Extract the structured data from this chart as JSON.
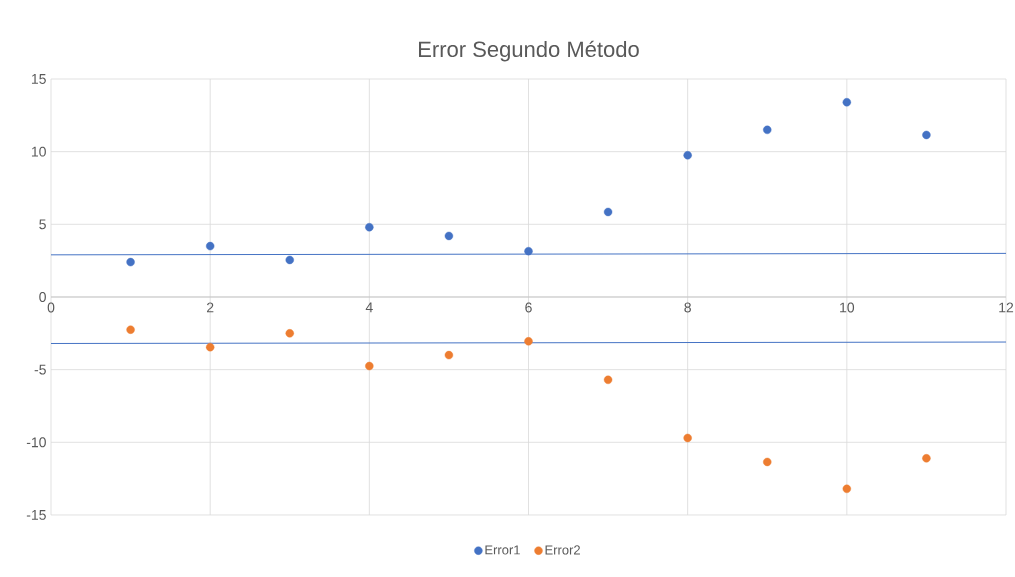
{
  "chart_data": {
    "type": "scatter",
    "title": "Error Segundo Método",
    "xlim": [
      0,
      12
    ],
    "xticks": [
      0,
      2,
      4,
      6,
      8,
      10,
      12
    ],
    "ylim": [
      -15,
      15
    ],
    "yticks": [
      -15,
      -10,
      -5,
      0,
      5,
      10,
      15
    ],
    "grid": true,
    "legend": "bottom",
    "series": [
      {
        "name": "Error1",
        "marker": "circle",
        "color": "#4472c4",
        "x": [
          1,
          2,
          3,
          4,
          5,
          6,
          7,
          8,
          9,
          10,
          11
        ],
        "values": [
          2.4,
          3.5,
          2.55,
          4.8,
          4.2,
          3.15,
          5.85,
          9.75,
          11.5,
          13.4,
          11.15
        ]
      },
      {
        "name": "Error2",
        "marker": "circle",
        "color": "#ed7d31",
        "x": [
          1,
          2,
          3,
          4,
          5,
          6,
          7,
          8,
          9,
          10,
          11
        ],
        "values": [
          -2.25,
          -3.45,
          -2.5,
          -4.75,
          -4.0,
          -3.05,
          -5.7,
          -9.7,
          -11.35,
          -13.2,
          -11.1
        ]
      },
      {
        "type": "line",
        "marker": "none",
        "color": "#4472c4",
        "x": [
          0,
          12
        ],
        "values": [
          2.9,
          3.0
        ]
      },
      {
        "type": "line",
        "marker": "none",
        "color": "#4472c4",
        "x": [
          0,
          12
        ],
        "values": [
          -3.2,
          -3.1
        ]
      }
    ]
  }
}
